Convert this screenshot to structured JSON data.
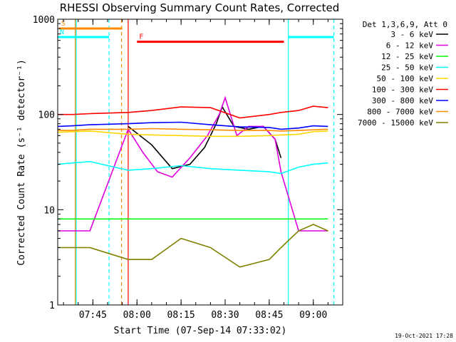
{
  "chart_data": {
    "type": "line",
    "title": "RHESSI Observing Summary Count Rates, Corrected",
    "xlabel": "Start Time (07-Sep-14 07:33:02)",
    "ylabel": "Corrected Count Rate (s⁻¹ detector⁻¹)",
    "y_scale": "log",
    "ylim": [
      1,
      1000
    ],
    "xlim": [
      "07:33:02",
      "09:10:00"
    ],
    "x_ticks": [
      "07:45",
      "08:00",
      "08:15",
      "08:30",
      "08:45",
      "09:00"
    ],
    "y_ticks": [
      "1",
      "10",
      "100",
      "1000"
    ],
    "legend_title": "Det 1,3,6,9, Att 0",
    "legend_position": "right",
    "footer_date": "19-Oct-2021 17:28",
    "series": [
      {
        "name": "3 - 6 keV",
        "color": "#000000",
        "x": [
          "07:57",
          "08:05",
          "08:12",
          "08:18",
          "08:23",
          "08:27",
          "08:29",
          "08:33",
          "08:38",
          "08:43",
          "08:47",
          "08:49"
        ],
        "y": [
          75,
          48,
          27,
          30,
          45,
          80,
          120,
          75,
          70,
          75,
          55,
          35
        ]
      },
      {
        "name": "6 - 12 keV",
        "color": "#e000e0",
        "x": [
          "07:33",
          "07:38",
          "07:44",
          "07:57",
          "08:02",
          "08:07",
          "08:12",
          "08:18",
          "08:24",
          "08:28",
          "08:30",
          "08:34",
          "08:38",
          "08:43",
          "08:47",
          "08:49",
          "08:55",
          "09:00",
          "09:05"
        ],
        "y": [
          6,
          6,
          6,
          70,
          40,
          25,
          22,
          35,
          60,
          100,
          150,
          60,
          75,
          75,
          55,
          25,
          6,
          6,
          6
        ]
      },
      {
        "name": "12 - 25 keV",
        "color": "#00ff00",
        "x": [
          "07:33",
          "07:38",
          "07:44",
          "07:57",
          "08:05",
          "08:15",
          "08:25",
          "08:35",
          "08:45",
          "08:49",
          "08:55",
          "09:00",
          "09:05"
        ],
        "y": [
          8,
          8,
          8,
          8,
          8,
          8,
          8,
          8,
          8,
          8,
          8,
          8,
          8
        ]
      },
      {
        "name": "25 - 50 keV",
        "color": "#00ffff",
        "x": [
          "07:33",
          "07:38",
          "07:44",
          "07:57",
          "08:05",
          "08:15",
          "08:25",
          "08:35",
          "08:45",
          "08:49",
          "08:55",
          "09:00",
          "09:05"
        ],
        "y": [
          30,
          31,
          32,
          26,
          27,
          29,
          27,
          26,
          25,
          24,
          28,
          30,
          31
        ]
      },
      {
        "name": "50 - 100 keV",
        "color": "#ffd700",
        "x": [
          "07:33",
          "07:38",
          "07:44",
          "07:57",
          "08:05",
          "08:15",
          "08:25",
          "08:35",
          "08:45",
          "08:49",
          "08:55",
          "09:00",
          "09:05"
        ],
        "y": [
          65,
          66,
          67,
          62,
          61,
          60,
          59,
          59,
          60,
          61,
          62,
          66,
          67
        ]
      },
      {
        "name": "100 - 300 keV",
        "color": "#ff0000",
        "x": [
          "07:33",
          "07:38",
          "07:44",
          "07:57",
          "08:05",
          "08:15",
          "08:25",
          "08:35",
          "08:45",
          "08:49",
          "08:55",
          "09:00",
          "09:05"
        ],
        "y": [
          100,
          100,
          102,
          105,
          110,
          120,
          118,
          92,
          100,
          105,
          110,
          122,
          118
        ]
      },
      {
        "name": "300 - 800 keV",
        "color": "#0000ff",
        "x": [
          "07:33",
          "07:38",
          "07:44",
          "07:57",
          "08:05",
          "08:15",
          "08:25",
          "08:35",
          "08:45",
          "08:49",
          "08:55",
          "09:00",
          "09:05"
        ],
        "y": [
          75,
          76,
          78,
          80,
          82,
          83,
          78,
          74,
          73,
          70,
          72,
          76,
          75
        ]
      },
      {
        "name": "800 - 7000 keV",
        "color": "#ff8c00",
        "x": [
          "07:33",
          "07:38",
          "07:44",
          "07:57",
          "08:05",
          "08:15",
          "08:25",
          "08:35",
          "08:45",
          "08:49",
          "08:55",
          "09:00",
          "09:05"
        ],
        "y": [
          68,
          68,
          70,
          70,
          71,
          70,
          69,
          68,
          68,
          67,
          68,
          69,
          70
        ]
      },
      {
        "name": "7000 - 15000 keV",
        "color": "#808000",
        "x": [
          "07:33",
          "07:38",
          "07:44",
          "07:57",
          "08:05",
          "08:15",
          "08:25",
          "08:35",
          "08:45",
          "08:49",
          "08:55",
          "09:00",
          "09:05"
        ],
        "y": [
          4,
          4,
          4,
          3,
          3,
          5,
          4,
          2.5,
          3,
          4,
          6,
          7,
          6
        ]
      }
    ],
    "flags": [
      {
        "label": "S",
        "color": "#ff8c00",
        "start": "07:33:30",
        "end": "07:55:00",
        "y": 800
      },
      {
        "label": "N",
        "color": "#00ffff",
        "start": "07:33:02",
        "end": "07:50:30",
        "y": 650
      },
      {
        "label": "F",
        "color": "#ff0000",
        "start": "08:00:00",
        "end": "08:50:00",
        "y": 580
      },
      {
        "label": "",
        "color": "#00ffff",
        "start": "08:51:30",
        "end": "09:07:00",
        "y": 650
      }
    ],
    "vertical_lines": [
      {
        "t": "07:39:00",
        "color": "#ff8c00",
        "style": "solid"
      },
      {
        "t": "07:39:20",
        "color": "#00ffff",
        "style": "solid"
      },
      {
        "t": "07:50:30",
        "color": "#00ffff",
        "style": "dashed"
      },
      {
        "t": "07:54:45",
        "color": "#ff8c00",
        "style": "dashed"
      },
      {
        "t": "07:57:00",
        "color": "#ff0000",
        "style": "solid"
      },
      {
        "t": "08:51:30",
        "color": "#00ffff",
        "style": "solid"
      },
      {
        "t": "09:07:00",
        "color": "#00ffff",
        "style": "dashed"
      }
    ]
  }
}
